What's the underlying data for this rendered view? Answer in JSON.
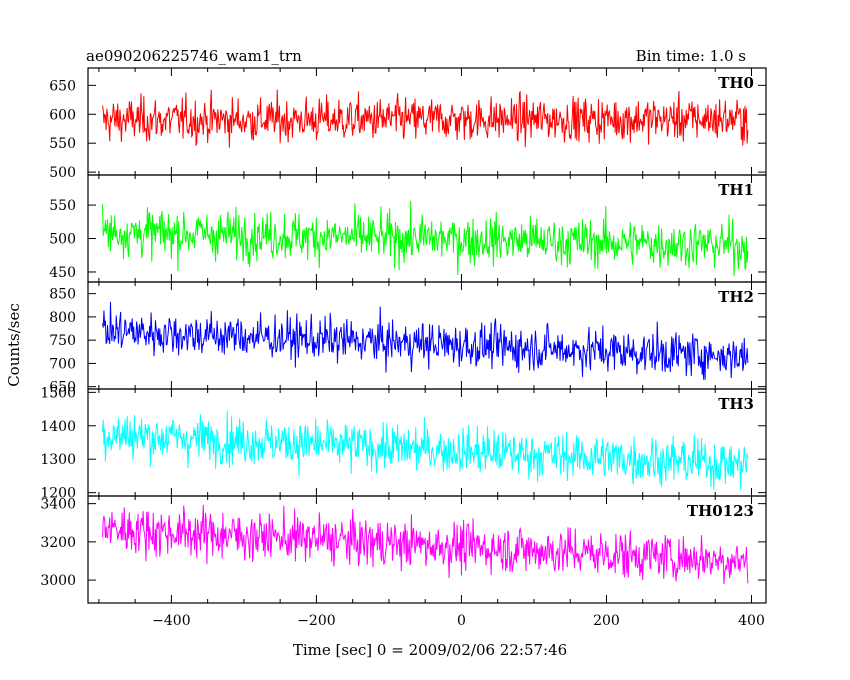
{
  "header": {
    "title": "ae090206225746_wam1_trn",
    "bin_time": "Bin time: 1.0 s"
  },
  "axes": {
    "xlabel": "Time [sec] 0 = 2009/02/06 22:57:46",
    "ylabel": "Counts/sec"
  },
  "chart_data": {
    "type": "line",
    "title": "ae090206225746_wam1_trn",
    "subtitle": "Bin time: 1.0 s",
    "xlabel": "Time [sec] 0 = 2009/02/06 22:57:46",
    "ylabel": "Counts/sec",
    "xlim": [
      -515,
      420
    ],
    "x_range": [
      -495,
      395
    ],
    "x_ticks": [
      -400,
      -200,
      0,
      200,
      400
    ],
    "x_tick_labels": [
      "−400",
      "−200",
      "0",
      "200",
      "400"
    ],
    "bin_time_s": 1.0,
    "grid": false,
    "panels": [
      {
        "name": "TH0",
        "color": "#ff0000",
        "ylim": [
          495,
          680
        ],
        "y_ticks": [
          500,
          550,
          600,
          650
        ],
        "y_tick_labels": [
          "500",
          "550",
          "600",
          "650"
        ],
        "trend": [
          [
            -495,
            590
          ],
          [
            395,
            592
          ]
        ],
        "spread": [
          510,
          670
        ]
      },
      {
        "name": "TH1",
        "color": "#00ff00",
        "ylim": [
          435,
          595
        ],
        "y_ticks": [
          450,
          500,
          550
        ],
        "y_tick_labels": [
          "450",
          "500",
          "550"
        ],
        "trend": [
          [
            -495,
            510
          ],
          [
            395,
            490
          ]
        ],
        "spread": [
          440,
          590
        ]
      },
      {
        "name": "TH2",
        "color": "#0000ff",
        "ylim": [
          645,
          875
        ],
        "y_ticks": [
          650,
          700,
          750,
          800,
          850
        ],
        "y_tick_labels": [
          "650",
          "700",
          "750",
          "800",
          "850"
        ],
        "trend": [
          [
            -495,
            770
          ],
          [
            395,
            715
          ]
        ],
        "spread": [
          665,
          865
        ]
      },
      {
        "name": "TH3",
        "color": "#00ffff",
        "ylim": [
          1190,
          1510
        ],
        "y_ticks": [
          1200,
          1300,
          1400,
          1500
        ],
        "y_tick_labels": [
          "1200",
          "1300",
          "1400",
          "1500"
        ],
        "trend": [
          [
            -495,
            1375
          ],
          [
            395,
            1285
          ]
        ],
        "spread": [
          1205,
          1500
        ]
      },
      {
        "name": "TH0123",
        "color": "#ff00ff",
        "ylim": [
          2880,
          3440
        ],
        "y_ticks": [
          3000,
          3200,
          3400
        ],
        "y_tick_labels": [
          "3000",
          "3200",
          "3400"
        ],
        "trend": [
          [
            -495,
            3270
          ],
          [
            395,
            3100
          ]
        ],
        "spread": [
          2890,
          3420
        ]
      }
    ]
  }
}
